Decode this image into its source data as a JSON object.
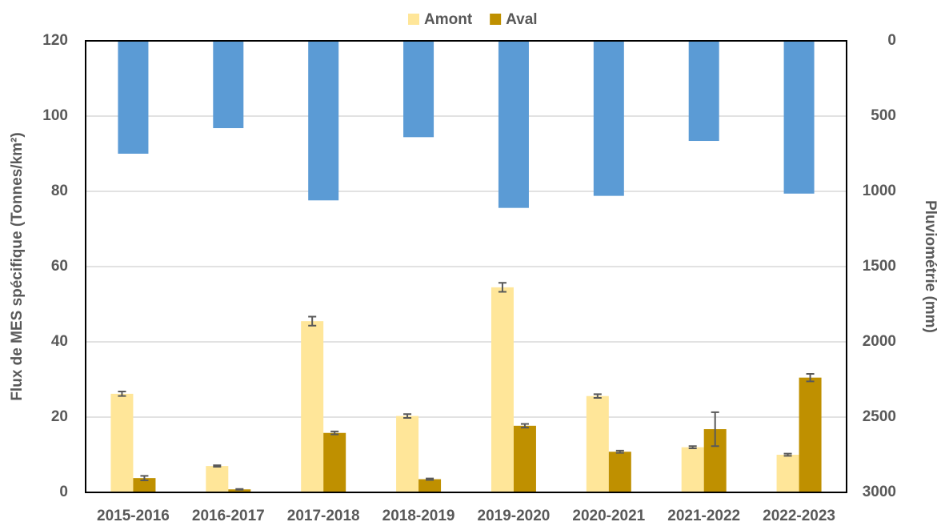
{
  "chart_data": {
    "type": "bar",
    "y_label": "Flux de MES spécifique  (Tonnes/km²)",
    "y2_label": "Pluviométrie (mm)",
    "categories": [
      "2015-2016",
      "2016-2017",
      "2017-2018",
      "2018-2019",
      "2019-2020",
      "2020-2021",
      "2021-2022",
      "2022-2023"
    ],
    "series": [
      {
        "name": "Amont",
        "color": "#ffe699",
        "values": [
          26.2,
          7,
          45.5,
          20.3,
          54.5,
          25.6,
          12,
          10
        ],
        "errors": [
          0.6,
          0.2,
          1.2,
          0.5,
          1.2,
          0.5,
          0.3,
          0.3
        ]
      },
      {
        "name": "Aval",
        "color": "#bf9000",
        "values": [
          3.8,
          0.8,
          15.8,
          3.5,
          17.7,
          10.8,
          16.8,
          30.5
        ],
        "errors": [
          0.6,
          0.1,
          0.4,
          0.2,
          0.5,
          0.3,
          4.5,
          1.0
        ]
      },
      {
        "color": "#5b9bd5",
        "axis": "y2",
        "values": [
          750,
          580,
          1060,
          640,
          1110,
          1030,
          665,
          1015
        ]
      }
    ],
    "ylim": [
      0,
      120
    ],
    "yticks": [
      0,
      20,
      40,
      60,
      80,
      100,
      120
    ],
    "y2lim": [
      0,
      3000
    ],
    "y2ticks": [
      0,
      500,
      1000,
      1500,
      2000,
      2500,
      3000
    ],
    "y2_inverted": true,
    "grid": true,
    "legend": "top",
    "error_color": "#595959"
  }
}
